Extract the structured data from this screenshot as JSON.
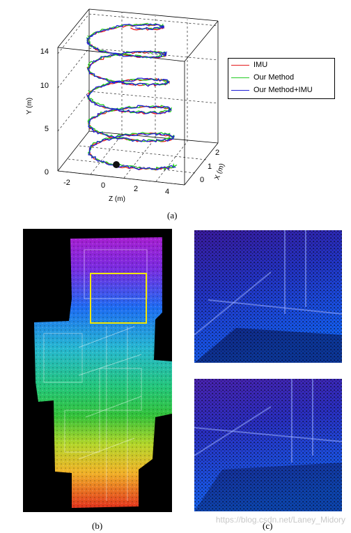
{
  "chart_data": {
    "type": "line3d",
    "axes": {
      "y_label": "Y (m)",
      "y_ticks": [
        "0",
        "5",
        "10",
        "14"
      ],
      "z_label": "Z (m)",
      "z_ticks": [
        "-2",
        "0",
        "2",
        "4"
      ],
      "x_label": "X (m)",
      "x_ticks": [
        "0",
        "1",
        "2"
      ]
    },
    "legend": [
      {
        "name": "IMU",
        "color": "#e41a1c"
      },
      {
        "name": "Our Method",
        "color": "#22cc22"
      },
      {
        "name": "Our Method+IMU",
        "color": "#1f1fd6"
      }
    ],
    "description": "spiral staircase trajectories, 3 series"
  },
  "captions": {
    "a": "(a)",
    "b": "(b)",
    "c": "(c)"
  },
  "watermark": "https://blog.csdn.net/Laney_Midory"
}
